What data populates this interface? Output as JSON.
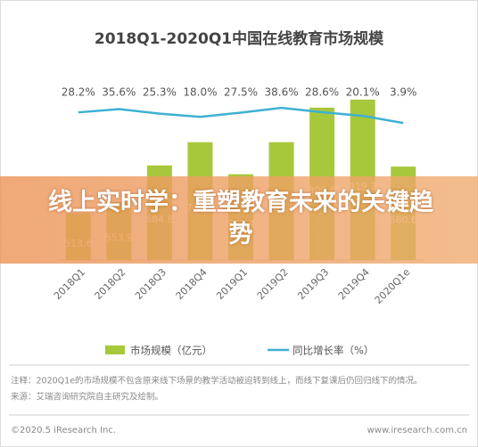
{
  "chart_data": {
    "type": "combo",
    "title": "2018Q1-2020Q1中国在线教育市场规模",
    "categories": [
      "2018Q1",
      "2018Q2",
      "2018Q3",
      "2018Q4",
      "2019Q1",
      "2019Q2",
      "2019Q3",
      "2019Q4",
      "2020Q1e"
    ],
    "ylim": [
      348,
      1147
    ],
    "y2lim": [
      -310,
      204
    ],
    "series": [
      {
        "name": "市场规模（亿元）",
        "type": "bar",
        "color": "#a8c83c",
        "values": [
          513.6,
          553.9,
          684.8,
          767.5,
          653.4,
          767.6,
          890.6,
          919.3,
          680.6
        ]
      },
      {
        "name": "同比增长率（%）",
        "type": "line",
        "axis": "y2",
        "color": "#3eb1d3",
        "values": [
          28.2,
          35.6,
          25.3,
          18.0,
          27.5,
          38.6,
          28.6,
          20.1,
          3.9
        ],
        "value_labels": [
          "28.2%",
          "35.6%",
          "25.3%",
          "18.0%",
          "27.5%",
          "38.6%",
          "28.6%",
          "20.1%",
          "3.9%"
        ]
      }
    ],
    "notes": [
      "注释：2020Q1e的市场规模不包含原来线下场景的教学活动被迫转到线上，而线下复课后仍回归线下的情况。",
      "来源：艾瑞咨询研究院自主研究及绘制。"
    ],
    "footer_left": "©2020.5 iResearch Inc.",
    "footer_right": "www.iresearch.com.cn"
  },
  "banner": {
    "text": "线上实时学：重塑教育未来的关键趋势"
  }
}
